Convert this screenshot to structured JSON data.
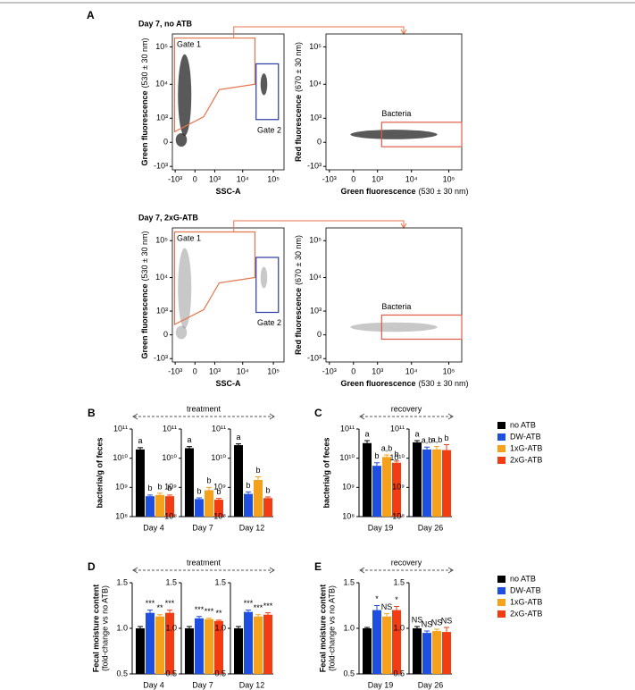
{
  "chart_data": [
    {
      "type": "scatter",
      "panel": "A",
      "title": "Day 7, no ATB",
      "xlabel": "SSC-A",
      "ylabel": "Green fluorescence",
      "ylabel_unit": "(530 ± 30 nm)",
      "xlim": [
        -1300,
        220000
      ],
      "ylim": [
        -1300,
        220000
      ],
      "xticks": [
        {
          "value": -1000,
          "label": "-10³"
        },
        0,
        {
          "value": 1000,
          "label": "10³"
        },
        {
          "value": 10000,
          "label": "10⁴"
        },
        {
          "value": 100000,
          "label": "10⁵"
        }
      ],
      "yticks": [
        {
          "value": -1000,
          "label": "-10³"
        },
        0,
        {
          "value": 1000,
          "label": "10³"
        },
        {
          "value": 10000,
          "label": "10⁴"
        },
        {
          "value": 100000,
          "label": "10⁵"
        }
      ],
      "gates": [
        "Gate 1",
        "Gate 2"
      ]
    },
    {
      "type": "scatter",
      "xlabel": "Green fluorescence",
      "xlabel_unit": "(530 ± 30 nm)",
      "ylabel": "Red fluorescence",
      "ylabel_unit": "(670 ± 30 nm)",
      "xlim": [
        -1300,
        220000
      ],
      "ylim": [
        -1300,
        220000
      ],
      "xticks": [
        {
          "value": -1000,
          "label": "-10³"
        },
        0,
        {
          "value": 1000,
          "label": "10³"
        },
        {
          "value": 10000,
          "label": "10⁴"
        },
        {
          "value": 100000,
          "label": "10⁵"
        }
      ],
      "yticks": [
        {
          "value": -1000,
          "label": "-10³"
        },
        0,
        {
          "value": 1000,
          "label": "10³"
        },
        {
          "value": 10000,
          "label": "10⁴"
        },
        {
          "value": 100000,
          "label": "10⁵"
        }
      ],
      "gates": [
        "Bacteria"
      ]
    },
    {
      "type": "scatter",
      "title": "Day 7, 2xG-ATB",
      "xlabel": "SSC-A",
      "ylabel": "Green fluorescence",
      "ylabel_unit": "(530 ± 30 nm)",
      "xlim": [
        -1300,
        220000
      ],
      "ylim": [
        -1300,
        220000
      ],
      "xticks": [
        {
          "value": -1000,
          "label": "-10³"
        },
        0,
        {
          "value": 1000,
          "label": "10³"
        },
        {
          "value": 10000,
          "label": "10⁴"
        },
        {
          "value": 100000,
          "label": "10⁵"
        }
      ],
      "yticks": [
        {
          "value": -1000,
          "label": "-10³"
        },
        0,
        {
          "value": 1000,
          "label": "10³"
        },
        {
          "value": 10000,
          "label": "10⁴"
        },
        {
          "value": 100000,
          "label": "10⁵"
        }
      ],
      "gates": [
        "Gate 1",
        "Gate 2"
      ]
    },
    {
      "type": "scatter",
      "xlabel": "Green fluorescence",
      "xlabel_unit": "(530 ± 30 nm)",
      "ylabel": "Red fluorescence",
      "ylabel_unit": "(670 ± 30 nm)",
      "xlim": [
        -1300,
        220000
      ],
      "ylim": [
        -1300,
        220000
      ],
      "xticks": [
        {
          "value": -1000,
          "label": "-10³"
        },
        0,
        {
          "value": 1000,
          "label": "10³"
        },
        {
          "value": 10000,
          "label": "10⁴"
        },
        {
          "value": 100000,
          "label": "10⁵"
        }
      ],
      "yticks": [
        {
          "value": -1000,
          "label": "-10³"
        },
        0,
        {
          "value": 1000,
          "label": "10³"
        },
        {
          "value": 10000,
          "label": "10⁴"
        },
        {
          "value": 100000,
          "label": "10⁵"
        }
      ],
      "gates": [
        "Bacteria"
      ]
    },
    {
      "type": "bar",
      "panel": "B",
      "header": "treatment",
      "ylabel": "bacteria/g of feces",
      "ylog": true,
      "ylim": [
        100000000.0,
        100000000000.0
      ],
      "yticks": [
        {
          "value": 100000000.0,
          "label": "10⁸"
        },
        {
          "value": 1000000000.0,
          "label": "10⁹"
        },
        {
          "value": 10000000000.0,
          "label": "10¹⁰"
        },
        {
          "value": 100000000000.0,
          "label": "10¹¹"
        }
      ],
      "categories": [
        "Day 4"
      ],
      "series": [
        {
          "name": "no ATB",
          "color": "#000000",
          "values": [
            20000000000.0
          ],
          "errors": [
            3000000000.0
          ],
          "annotations": [
            "a"
          ]
        },
        {
          "name": "DW-ATB",
          "color": "#1f4fe0",
          "values": [
            500000000.0
          ],
          "errors": [
            50000000.0
          ],
          "annotations": [
            "b"
          ]
        },
        {
          "name": "1xG-ATB",
          "color": "#f5a11c",
          "values": [
            550000000.0
          ],
          "errors": [
            80000000.0
          ],
          "annotations": [
            "b"
          ]
        },
        {
          "name": "2xG-ATB",
          "color": "#f23c12",
          "values": [
            500000000.0
          ],
          "errors": [
            50000000.0
          ],
          "annotations": [
            "b"
          ]
        }
      ]
    },
    {
      "type": "bar",
      "ylog": true,
      "ylim": [
        100000000.0,
        100000000000.0
      ],
      "yticks": [
        {
          "value": 100000000.0,
          "label": "10⁸"
        },
        {
          "value": 1000000000.0,
          "label": "10⁹"
        },
        {
          "value": 10000000000.0,
          "label": "10¹⁰"
        },
        {
          "value": 100000000000.0,
          "label": "10¹¹"
        }
      ],
      "categories": [
        "Day 7"
      ],
      "series": [
        {
          "name": "no ATB",
          "color": "#000000",
          "values": [
            22000000000.0
          ],
          "errors": [
            3000000000.0
          ],
          "annotations": [
            "a"
          ]
        },
        {
          "name": "DW-ATB",
          "color": "#1f4fe0",
          "values": [
            400000000.0
          ],
          "errors": [
            40000000.0
          ],
          "annotations": [
            "b"
          ]
        },
        {
          "name": "1xG-ATB",
          "color": "#f5a11c",
          "values": [
            800000000.0
          ],
          "errors": [
            200000000.0
          ],
          "annotations": [
            "b"
          ]
        },
        {
          "name": "2xG-ATB",
          "color": "#f23c12",
          "values": [
            380000000.0
          ],
          "errors": [
            40000000.0
          ],
          "annotations": [
            "b"
          ]
        }
      ]
    },
    {
      "type": "bar",
      "ylog": true,
      "ylim": [
        100000000.0,
        100000000000.0
      ],
      "yticks": [
        {
          "value": 100000000.0,
          "label": "10⁸"
        },
        {
          "value": 1000000000.0,
          "label": "10⁹"
        },
        {
          "value": 10000000000.0,
          "label": "10¹⁰"
        },
        {
          "value": 100000000000.0,
          "label": "10¹¹"
        }
      ],
      "categories": [
        "Day 12"
      ],
      "series": [
        {
          "name": "no ATB",
          "color": "#000000",
          "values": [
            28000000000.0
          ],
          "errors": [
            3000000000.0
          ],
          "annotations": [
            "a"
          ]
        },
        {
          "name": "DW-ATB",
          "color": "#1f4fe0",
          "values": [
            600000000.0
          ],
          "errors": [
            100000000.0
          ],
          "annotations": [
            "b"
          ]
        },
        {
          "name": "1xG-ATB",
          "color": "#f5a11c",
          "values": [
            1800000000.0
          ],
          "errors": [
            500000000.0
          ],
          "annotations": [
            "b"
          ]
        },
        {
          "name": "2xG-ATB",
          "color": "#f23c12",
          "values": [
            430000000.0
          ],
          "errors": [
            40000000.0
          ],
          "annotations": [
            "b"
          ]
        }
      ]
    },
    {
      "type": "bar",
      "panel": "C",
      "header": "recovery",
      "ylabel": "bacteria/g of feces",
      "ylog": true,
      "ylim": [
        100000000.0,
        100000000000.0
      ],
      "yticks": [
        {
          "value": 100000000.0,
          "label": "10⁸"
        },
        {
          "value": 1000000000.0,
          "label": "10⁹"
        },
        {
          "value": 10000000000.0,
          "label": "10¹⁰"
        },
        {
          "value": 100000000000.0,
          "label": "10¹¹"
        }
      ],
      "categories": [
        "Day 19"
      ],
      "series": [
        {
          "name": "no ATB",
          "color": "#000000",
          "values": [
            33000000000.0
          ],
          "errors": [
            7000000000.0
          ],
          "annotations": [
            "a"
          ]
        },
        {
          "name": "DW-ATB",
          "color": "#1f4fe0",
          "values": [
            5500000000.0
          ],
          "errors": [
            1500000000.0
          ],
          "annotations": [
            "b"
          ]
        },
        {
          "name": "1xG-ATB",
          "color": "#f5a11c",
          "values": [
            11000000000.0
          ],
          "errors": [
            2000000000.0
          ],
          "annotations": [
            "a,b"
          ]
        },
        {
          "name": "2xG-ATB",
          "color": "#f23c12",
          "values": [
            7000000000.0
          ],
          "errors": [
            1000000000.0
          ],
          "annotations": [
            "b"
          ]
        }
      ]
    },
    {
      "type": "bar",
      "ylog": true,
      "ylim": [
        100000000.0,
        100000000000.0
      ],
      "legend": true,
      "yticks": [
        {
          "value": 100000000.0,
          "label": "10⁸"
        },
        {
          "value": 1000000000.0,
          "label": "10⁹"
        },
        {
          "value": 10000000000.0,
          "label": "10¹⁰"
        },
        {
          "value": 100000000000.0,
          "label": "10¹¹"
        }
      ],
      "categories": [
        "Day 26"
      ],
      "series": [
        {
          "name": "no ATB",
          "color": "#000000",
          "values": [
            35000000000.0
          ],
          "errors": [
            5000000000.0
          ],
          "annotations": [
            "a"
          ]
        },
        {
          "name": "DW-ATB",
          "color": "#1f4fe0",
          "values": [
            20000000000.0
          ],
          "errors": [
            4000000000.0
          ],
          "annotations": [
            "a,b"
          ]
        },
        {
          "name": "1xG-ATB",
          "color": "#f5a11c",
          "values": [
            20000000000.0
          ],
          "errors": [
            5000000000.0
          ],
          "annotations": [
            "a,b"
          ]
        },
        {
          "name": "2xG-ATB",
          "color": "#f23c12",
          "values": [
            19000000000.0
          ],
          "errors": [
            10000000000.0
          ],
          "annotations": [
            "b"
          ]
        }
      ]
    },
    {
      "type": "bar",
      "panel": "D",
      "header": "treatment",
      "ylabel": "Fecal moisture content",
      "ylabel_unit": "(fold-change vs no ATB)",
      "ylim": [
        0.5,
        1.5
      ],
      "yticks": [
        0.5,
        {
          "value": 1,
          "label": "1.0"
        },
        1.5
      ],
      "categories": [
        "Day 4"
      ],
      "series": [
        {
          "name": "no ATB",
          "color": "#000000",
          "values": [
            1.0
          ],
          "errors": [
            0.02
          ],
          "annotations": [
            null
          ]
        },
        {
          "name": "DW-ATB",
          "color": "#1f4fe0",
          "values": [
            1.17
          ],
          "errors": [
            0.03
          ],
          "annotations": [
            "***"
          ]
        },
        {
          "name": "1xG-ATB",
          "color": "#f5a11c",
          "values": [
            1.13
          ],
          "errors": [
            0.02
          ],
          "annotations": [
            "**"
          ]
        },
        {
          "name": "2xG-ATB",
          "color": "#f23c12",
          "values": [
            1.17
          ],
          "errors": [
            0.03
          ],
          "annotations": [
            "***"
          ]
        }
      ]
    },
    {
      "type": "bar",
      "ylim": [
        0.5,
        1.5
      ],
      "yticks": [
        0.5,
        {
          "value": 1,
          "label": "1.0"
        },
        1.5
      ],
      "categories": [
        "Day 7"
      ],
      "series": [
        {
          "name": "no ATB",
          "color": "#000000",
          "values": [
            1.0
          ],
          "errors": [
            0.02
          ],
          "annotations": [
            null
          ]
        },
        {
          "name": "DW-ATB",
          "color": "#1f4fe0",
          "values": [
            1.11
          ],
          "errors": [
            0.02
          ],
          "annotations": [
            "***"
          ]
        },
        {
          "name": "1xG-ATB",
          "color": "#f5a11c",
          "values": [
            1.1
          ],
          "errors": [
            0.01
          ],
          "annotations": [
            "***"
          ]
        },
        {
          "name": "2xG-ATB",
          "color": "#f23c12",
          "values": [
            1.08
          ],
          "errors": [
            0.01
          ],
          "annotations": [
            "**"
          ]
        }
      ]
    },
    {
      "type": "bar",
      "ylim": [
        0.5,
        1.5
      ],
      "yticks": [
        0.5,
        {
          "value": 1,
          "label": "1.0"
        },
        1.5
      ],
      "categories": [
        "Day 12"
      ],
      "series": [
        {
          "name": "no ATB",
          "color": "#000000",
          "values": [
            1.0
          ],
          "errors": [
            0.02
          ],
          "annotations": [
            null
          ]
        },
        {
          "name": "DW-ATB",
          "color": "#1f4fe0",
          "values": [
            1.18
          ],
          "errors": [
            0.02
          ],
          "annotations": [
            "***"
          ]
        },
        {
          "name": "1xG-ATB",
          "color": "#f5a11c",
          "values": [
            1.13
          ],
          "errors": [
            0.02
          ],
          "annotations": [
            "***"
          ]
        },
        {
          "name": "2xG-ATB",
          "color": "#f23c12",
          "values": [
            1.15
          ],
          "errors": [
            0.02
          ],
          "annotations": [
            "***"
          ]
        }
      ]
    },
    {
      "type": "bar",
      "panel": "E",
      "header": "recovery",
      "ylabel": "Fecal moisture content",
      "ylabel_unit": "(fold-change vs no ATB)",
      "ylim": [
        0.5,
        1.5
      ],
      "yticks": [
        0.5,
        {
          "value": 1,
          "label": "1.0"
        },
        1.5
      ],
      "categories": [
        "Day 19"
      ],
      "series": [
        {
          "name": "no ATB",
          "color": "#000000",
          "values": [
            1.0
          ],
          "errors": [
            0.01
          ],
          "annotations": [
            null
          ]
        },
        {
          "name": "DW-ATB",
          "color": "#1f4fe0",
          "values": [
            1.2
          ],
          "errors": [
            0.05
          ],
          "annotations": [
            "*"
          ]
        },
        {
          "name": "1xG-ATB",
          "color": "#f5a11c",
          "values": [
            1.13
          ],
          "errors": [
            0.03
          ],
          "annotations": [
            "NS"
          ]
        },
        {
          "name": "2xG-ATB",
          "color": "#f23c12",
          "values": [
            1.2
          ],
          "errors": [
            0.04
          ],
          "annotations": [
            "*"
          ]
        }
      ]
    },
    {
      "type": "bar",
      "ylim": [
        0.5,
        1.5
      ],
      "legend": true,
      "yticks": [
        0.5,
        {
          "value": 1,
          "label": "1.0"
        },
        1.5
      ],
      "categories": [
        "Day 26"
      ],
      "series": [
        {
          "name": "no ATB",
          "color": "#000000",
          "values": [
            1.0
          ],
          "errors": [
            0.02
          ],
          "annotations": [
            "NS"
          ]
        },
        {
          "name": "DW-ATB",
          "color": "#1f4fe0",
          "values": [
            0.95
          ],
          "errors": [
            0.02
          ],
          "annotations": [
            "NS"
          ]
        },
        {
          "name": "1xG-ATB",
          "color": "#f5a11c",
          "values": [
            0.97
          ],
          "errors": [
            0.02
          ],
          "annotations": [
            "NS"
          ]
        },
        {
          "name": "2xG-ATB",
          "color": "#f23c12",
          "values": [
            0.96
          ],
          "errors": [
            0.05
          ],
          "annotations": [
            "NS"
          ]
        }
      ]
    }
  ]
}
